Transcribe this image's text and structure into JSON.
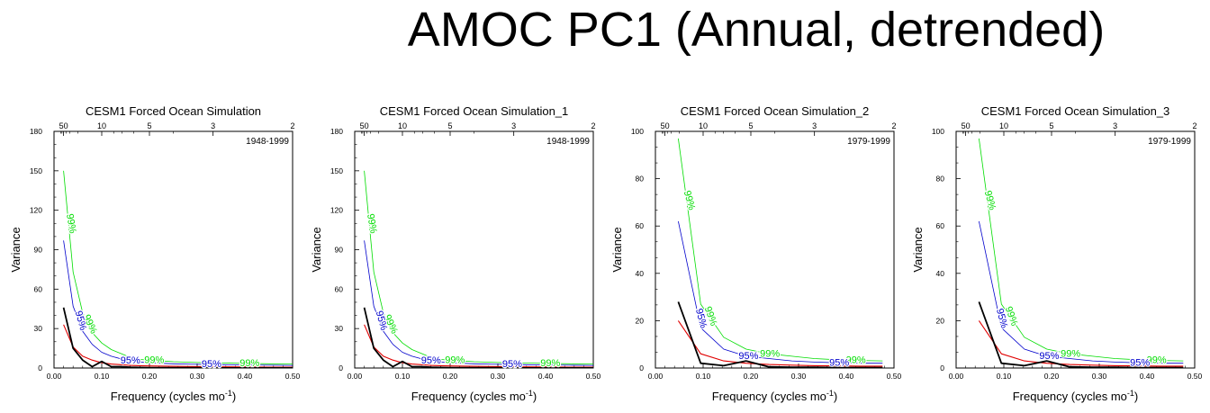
{
  "title": "AMOC PC1 (Annual, detrended)",
  "colors": {
    "spectrum": "#000000",
    "red_noise": "#e00000",
    "sig95": "#0000cc",
    "sig99": "#00dd00"
  },
  "chart_data": [
    {
      "type": "line",
      "title": "CESM1 Forced Ocean Simulation",
      "period_label": "1948-1999",
      "xlabel": "Frequency (cycles mo",
      "xlabel_sup": "-1",
      "xlabel_end": ")",
      "ylabel": "Variance",
      "xlim": [
        0,
        0.5
      ],
      "ylim": [
        0,
        180
      ],
      "x_ticks": [
        "0.00",
        "0.10",
        "0.20",
        "0.30",
        "0.40",
        "0.50"
      ],
      "y_ticks": [
        "0",
        "30",
        "60",
        "90",
        "120",
        "150",
        "180"
      ],
      "top_ticks": [
        "50",
        "10",
        "5",
        "3",
        "2"
      ],
      "sig95_labels": [
        "95%",
        "95%",
        "95%"
      ],
      "sig99_labels": [
        "99%",
        "99%",
        "99%",
        "99%"
      ],
      "x": [
        0.02,
        0.04,
        0.06,
        0.08,
        0.1,
        0.12,
        0.14,
        0.16,
        0.18,
        0.2,
        0.25,
        0.3,
        0.35,
        0.4,
        0.45,
        0.5
      ],
      "series": [
        {
          "name": "spectrum",
          "values": [
            46,
            15,
            6,
            1,
            5,
            1,
            1,
            0.6,
            0.4,
            0.3,
            0.2,
            0.2,
            0.1,
            0.1,
            0.1,
            0.1
          ]
        },
        {
          "name": "red_noise",
          "values": [
            33,
            16,
            9,
            6,
            4,
            3,
            2.5,
            2,
            1.8,
            1.6,
            1.3,
            1.1,
            0.9,
            0.8,
            0.7,
            0.7
          ]
        },
        {
          "name": "sig95",
          "values": [
            97,
            47,
            28,
            18,
            12,
            9,
            7,
            5.5,
            4.5,
            4,
            3.2,
            2.8,
            2.5,
            2.3,
            2.1,
            2
          ]
        },
        {
          "name": "sig99",
          "values": [
            150,
            73,
            42,
            27,
            19,
            14,
            11,
            8,
            6.5,
            6,
            4.8,
            4.2,
            3.8,
            3.5,
            3.2,
            3
          ]
        }
      ]
    },
    {
      "type": "line",
      "title": "CESM1 Forced Ocean Simulation_1",
      "period_label": "1948-1999",
      "xlabel": "Frequency (cycles mo",
      "xlabel_sup": "-1",
      "xlabel_end": ")",
      "ylabel": "Variance",
      "xlim": [
        0,
        0.5
      ],
      "ylim": [
        0,
        180
      ],
      "x_ticks": [
        "0.00",
        "0.10",
        "0.20",
        "0.30",
        "0.40",
        "0.50"
      ],
      "y_ticks": [
        "0",
        "30",
        "60",
        "90",
        "120",
        "150",
        "180"
      ],
      "top_ticks": [
        "50",
        "10",
        "5",
        "3",
        "2"
      ],
      "sig95_labels": [
        "95%",
        "95%",
        "95%"
      ],
      "sig99_labels": [
        "99%",
        "99%",
        "99%",
        "99%"
      ],
      "x": [
        0.02,
        0.04,
        0.06,
        0.08,
        0.1,
        0.12,
        0.14,
        0.16,
        0.18,
        0.2,
        0.25,
        0.3,
        0.35,
        0.4,
        0.45,
        0.5
      ],
      "series": [
        {
          "name": "spectrum",
          "values": [
            46,
            15,
            6,
            1,
            5,
            1,
            1,
            0.6,
            0.4,
            0.3,
            0.2,
            0.2,
            0.1,
            0.1,
            0.1,
            0.1
          ]
        },
        {
          "name": "red_noise",
          "values": [
            33,
            16,
            9,
            6,
            4,
            3,
            2.5,
            2,
            1.8,
            1.6,
            1.3,
            1.1,
            0.9,
            0.8,
            0.7,
            0.7
          ]
        },
        {
          "name": "sig95",
          "values": [
            97,
            47,
            28,
            18,
            12,
            9,
            7,
            5.5,
            4.5,
            4,
            3.2,
            2.8,
            2.5,
            2.3,
            2.1,
            2
          ]
        },
        {
          "name": "sig99",
          "values": [
            150,
            73,
            42,
            27,
            19,
            14,
            11,
            8,
            6.5,
            6,
            4.8,
            4.2,
            3.8,
            3.5,
            3.2,
            3
          ]
        }
      ]
    },
    {
      "type": "line",
      "title": "CESM1 Forced Ocean Simulation_2",
      "period_label": "1979-1999",
      "xlabel": "Frequency (cycles mo",
      "xlabel_sup": "-1",
      "xlabel_end": ")",
      "ylabel": "Variance",
      "xlim": [
        0,
        0.5
      ],
      "ylim": [
        0,
        100
      ],
      "x_ticks": [
        "0.00",
        "0.10",
        "0.20",
        "0.30",
        "0.40",
        "0.50"
      ],
      "y_ticks": [
        "0",
        "20",
        "40",
        "60",
        "80",
        "100"
      ],
      "top_ticks": [
        "50",
        "10",
        "5",
        "3",
        "2"
      ],
      "sig95_labels": [
        "95%",
        "95%",
        "95%"
      ],
      "sig99_labels": [
        "99%",
        "99%",
        "99%",
        "99%"
      ],
      "x": [
        0.048,
        0.095,
        0.143,
        0.19,
        0.238,
        0.286,
        0.333,
        0.381,
        0.429,
        0.476
      ],
      "series": [
        {
          "name": "spectrum",
          "values": [
            28,
            2,
            1,
            3,
            0.5,
            0.3,
            0.3,
            0.2,
            0.2,
            0.2
          ]
        },
        {
          "name": "red_noise",
          "values": [
            20,
            6,
            3,
            2,
            1.5,
            1.2,
            1,
            0.9,
            0.8,
            0.8
          ]
        },
        {
          "name": "sig95",
          "values": [
            62,
            17,
            8,
            5,
            4,
            3,
            2.5,
            2.2,
            2,
            2
          ]
        },
        {
          "name": "sig99",
          "values": [
            97,
            27,
            13,
            8,
            6,
            5,
            4,
            3.5,
            3.2,
            3
          ]
        }
      ]
    },
    {
      "type": "line",
      "title": "CESM1 Forced Ocean Simulation_3",
      "period_label": "1979-1999",
      "xlabel": "Frequency (cycles mo",
      "xlabel_sup": "-1",
      "xlabel_end": ")",
      "ylabel": "Variance",
      "xlim": [
        0,
        0.5
      ],
      "ylim": [
        0,
        100
      ],
      "x_ticks": [
        "0.00",
        "0.10",
        "0.20",
        "0.30",
        "0.40",
        "0.50"
      ],
      "y_ticks": [
        "0",
        "20",
        "40",
        "60",
        "80",
        "100"
      ],
      "top_ticks": [
        "50",
        "10",
        "5",
        "3",
        "2"
      ],
      "sig95_labels": [
        "95%",
        "95%",
        "95%"
      ],
      "sig99_labels": [
        "99%",
        "99%",
        "99%",
        "99%"
      ],
      "x": [
        0.048,
        0.095,
        0.143,
        0.19,
        0.238,
        0.286,
        0.333,
        0.381,
        0.429,
        0.476
      ],
      "series": [
        {
          "name": "spectrum",
          "values": [
            28,
            2,
            1,
            3,
            0.5,
            0.3,
            0.3,
            0.2,
            0.2,
            0.2
          ]
        },
        {
          "name": "red_noise",
          "values": [
            20,
            6,
            3,
            2,
            1.5,
            1.2,
            1,
            0.9,
            0.8,
            0.8
          ]
        },
        {
          "name": "sig95",
          "values": [
            62,
            17,
            8,
            5,
            4,
            3,
            2.5,
            2.2,
            2,
            2
          ]
        },
        {
          "name": "sig99",
          "values": [
            97,
            27,
            13,
            8,
            6,
            5,
            4,
            3.5,
            3.2,
            3
          ]
        }
      ]
    }
  ]
}
